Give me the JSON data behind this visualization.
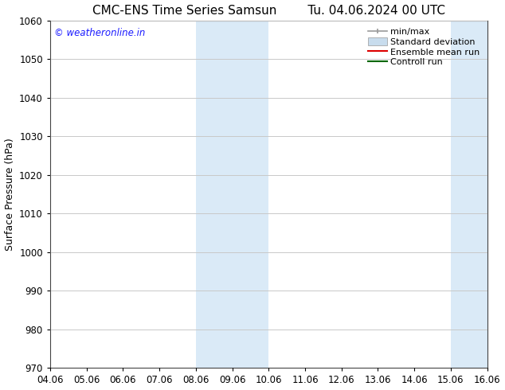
{
  "title_left": "CMC-ENS Time Series Samsun",
  "title_right": "Tu. 04.06.2024 00 UTC",
  "ylabel": "Surface Pressure (hPa)",
  "ylim": [
    970,
    1060
  ],
  "yticks": [
    970,
    980,
    990,
    1000,
    1010,
    1020,
    1030,
    1040,
    1050,
    1060
  ],
  "xtick_labels": [
    "04.06",
    "05.06",
    "06.06",
    "07.06",
    "08.06",
    "09.06",
    "10.06",
    "11.06",
    "12.06",
    "13.06",
    "14.06",
    "15.06",
    "16.06"
  ],
  "shaded_regions": [
    {
      "xstart": 4,
      "xend": 6,
      "color": "#daeaf7"
    },
    {
      "xstart": 11,
      "xend": 12,
      "color": "#daeaf7"
    }
  ],
  "bg_color": "#ffffff",
  "grid_color": "#c8c8c8",
  "legend_labels": [
    "min/max",
    "Standard deviation",
    "Ensemble mean run",
    "Controll run"
  ],
  "legend_minmax_color": "#999999",
  "legend_std_color": "#c8dced",
  "legend_ens_color": "#dd0000",
  "legend_ctrl_color": "#006600",
  "watermark_text": "© weatheronline.in",
  "watermark_color": "#1a1aff",
  "title_fontsize": 11,
  "ylabel_fontsize": 9,
  "tick_fontsize": 8.5,
  "legend_fontsize": 8,
  "watermark_fontsize": 8.5
}
